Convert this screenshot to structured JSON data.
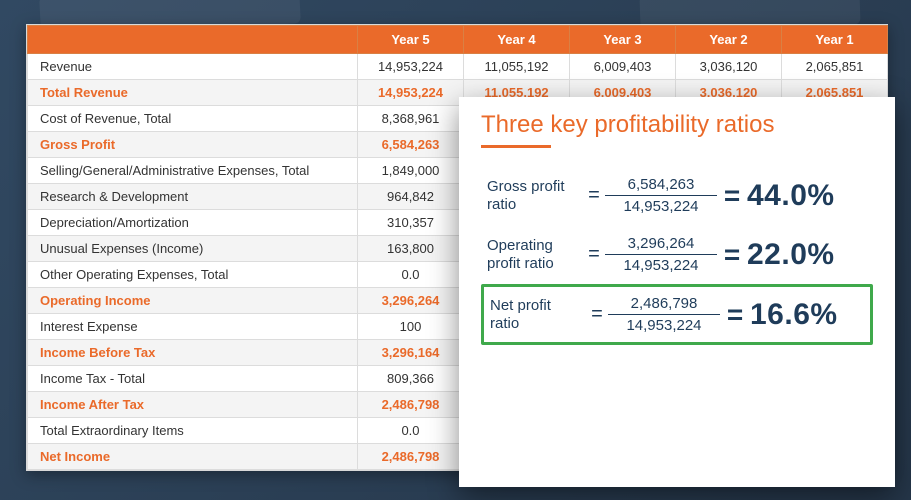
{
  "palette": {
    "accent": "#ea6a2a",
    "header_bg": "#ea6a2a",
    "header_text": "#ffffff",
    "row_alt_bg": "#f4f4f4",
    "border": "#dcdcdc",
    "card_bg": "#ffffff",
    "ratio_text": "#1f3c5a",
    "highlight_box": "#3fa94b",
    "page_bg": "#2a4058"
  },
  "table": {
    "headers": [
      "Year 5",
      "Year 4",
      "Year 3",
      "Year 2",
      "Year 1"
    ],
    "rows": [
      {
        "label": "Revenue",
        "emph": false,
        "vals": [
          "14,953,224",
          "11,055,192",
          "6,009,403",
          "3,036,120",
          "2,065,851"
        ]
      },
      {
        "label": "Total Revenue",
        "emph": true,
        "vals": [
          "14,953,224",
          "11,055,192",
          "6,009,403",
          "3,036,120",
          "2,065,851"
        ]
      },
      {
        "label": "Cost of Revenue, Total",
        "emph": false,
        "vals": [
          "8,368,961",
          "",
          "",
          "",
          ""
        ]
      },
      {
        "label": "Gross Profit",
        "emph": true,
        "vals": [
          "6,584,263",
          "",
          "",
          "",
          ""
        ]
      },
      {
        "label": "Selling/General/Administrative Expenses, Total",
        "emph": false,
        "vals": [
          "1,849,000",
          "",
          "",
          "",
          ""
        ]
      },
      {
        "label": "Research & Development",
        "emph": false,
        "vals": [
          "964,842",
          "",
          "",
          "",
          ""
        ]
      },
      {
        "label": "Depreciation/Amortization",
        "emph": false,
        "vals": [
          "310,357",
          "",
          "",
          "",
          ""
        ]
      },
      {
        "label": "Unusual Expenses (Income)",
        "emph": false,
        "vals": [
          "163,800",
          "",
          "",
          "",
          ""
        ]
      },
      {
        "label": "Other Operating Expenses, Total",
        "emph": false,
        "vals": [
          "0.0",
          "",
          "",
          "",
          ""
        ]
      },
      {
        "label": "Operating Income",
        "emph": true,
        "vals": [
          "3,296,264",
          "",
          "",
          "",
          ""
        ]
      },
      {
        "label": "Interest Expense",
        "emph": false,
        "vals": [
          "100",
          "",
          "",
          "",
          ""
        ]
      },
      {
        "label": "Income Before Tax",
        "emph": true,
        "vals": [
          "3,296,164",
          "",
          "",
          "",
          ""
        ]
      },
      {
        "label": "Income Tax - Total",
        "emph": false,
        "vals": [
          "809,366",
          "",
          "",
          "",
          ""
        ]
      },
      {
        "label": "Income After Tax",
        "emph": true,
        "vals": [
          "2,486,798",
          "",
          "",
          "",
          ""
        ]
      },
      {
        "label": "Total Extraordinary Items",
        "emph": false,
        "vals": [
          "0.0",
          "",
          "",
          "",
          ""
        ]
      },
      {
        "label": "Net Income",
        "emph": true,
        "vals": [
          "2,486,798",
          "",
          "",
          "",
          ""
        ]
      }
    ]
  },
  "card": {
    "title": "Three key profitability ratios",
    "ratios": [
      {
        "name_line1": "Gross profit",
        "name_line2": "ratio",
        "numer": "6,584,263",
        "denom": "14,953,224",
        "pct": "44.0%",
        "highlighted": false
      },
      {
        "name_line1": "Operating",
        "name_line2": "profit ratio",
        "numer": "3,296,264",
        "denom": "14,953,224",
        "pct": "22.0%",
        "highlighted": false
      },
      {
        "name_line1": "Net profit",
        "name_line2": "ratio",
        "numer": "2,486,798",
        "denom": "14,953,224",
        "pct": "16.6%",
        "highlighted": true
      }
    ],
    "eq": "="
  }
}
